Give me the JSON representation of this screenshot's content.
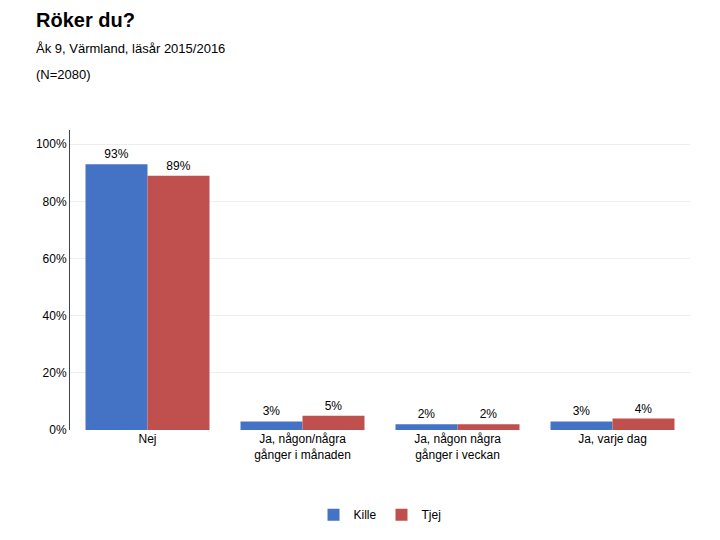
{
  "chart_data": {
    "type": "bar",
    "title": "Röker du?",
    "subtitle": [
      "Åk 9, Värmland, läsår 2015/2016",
      "(N=2080)"
    ],
    "categories": [
      "Nej",
      "Ja, någon/några\ngånger i månaden",
      "Ja, någon några\ngånger i veckan",
      "Ja, varje dag"
    ],
    "series": [
      {
        "name": "Kille",
        "color": "#4472C4",
        "values": [
          93,
          3,
          2,
          3
        ],
        "value_labels": [
          "93%",
          "3%",
          "2%",
          "3%"
        ]
      },
      {
        "name": "Tjej",
        "color": "#C0504D",
        "values": [
          89,
          5,
          2,
          4
        ],
        "value_labels": [
          "89%",
          "5%",
          "2%",
          "4%"
        ]
      }
    ],
    "ylim": [
      0,
      105
    ],
    "yticks": [
      {
        "value": 0,
        "label": "0%"
      },
      {
        "value": 20,
        "label": "20%"
      },
      {
        "value": 40,
        "label": "40%"
      },
      {
        "value": 60,
        "label": "60%"
      },
      {
        "value": 80,
        "label": "80%"
      },
      {
        "value": 100,
        "label": "100%"
      }
    ],
    "grid": true,
    "data_labels": true,
    "legend": "bottom"
  }
}
